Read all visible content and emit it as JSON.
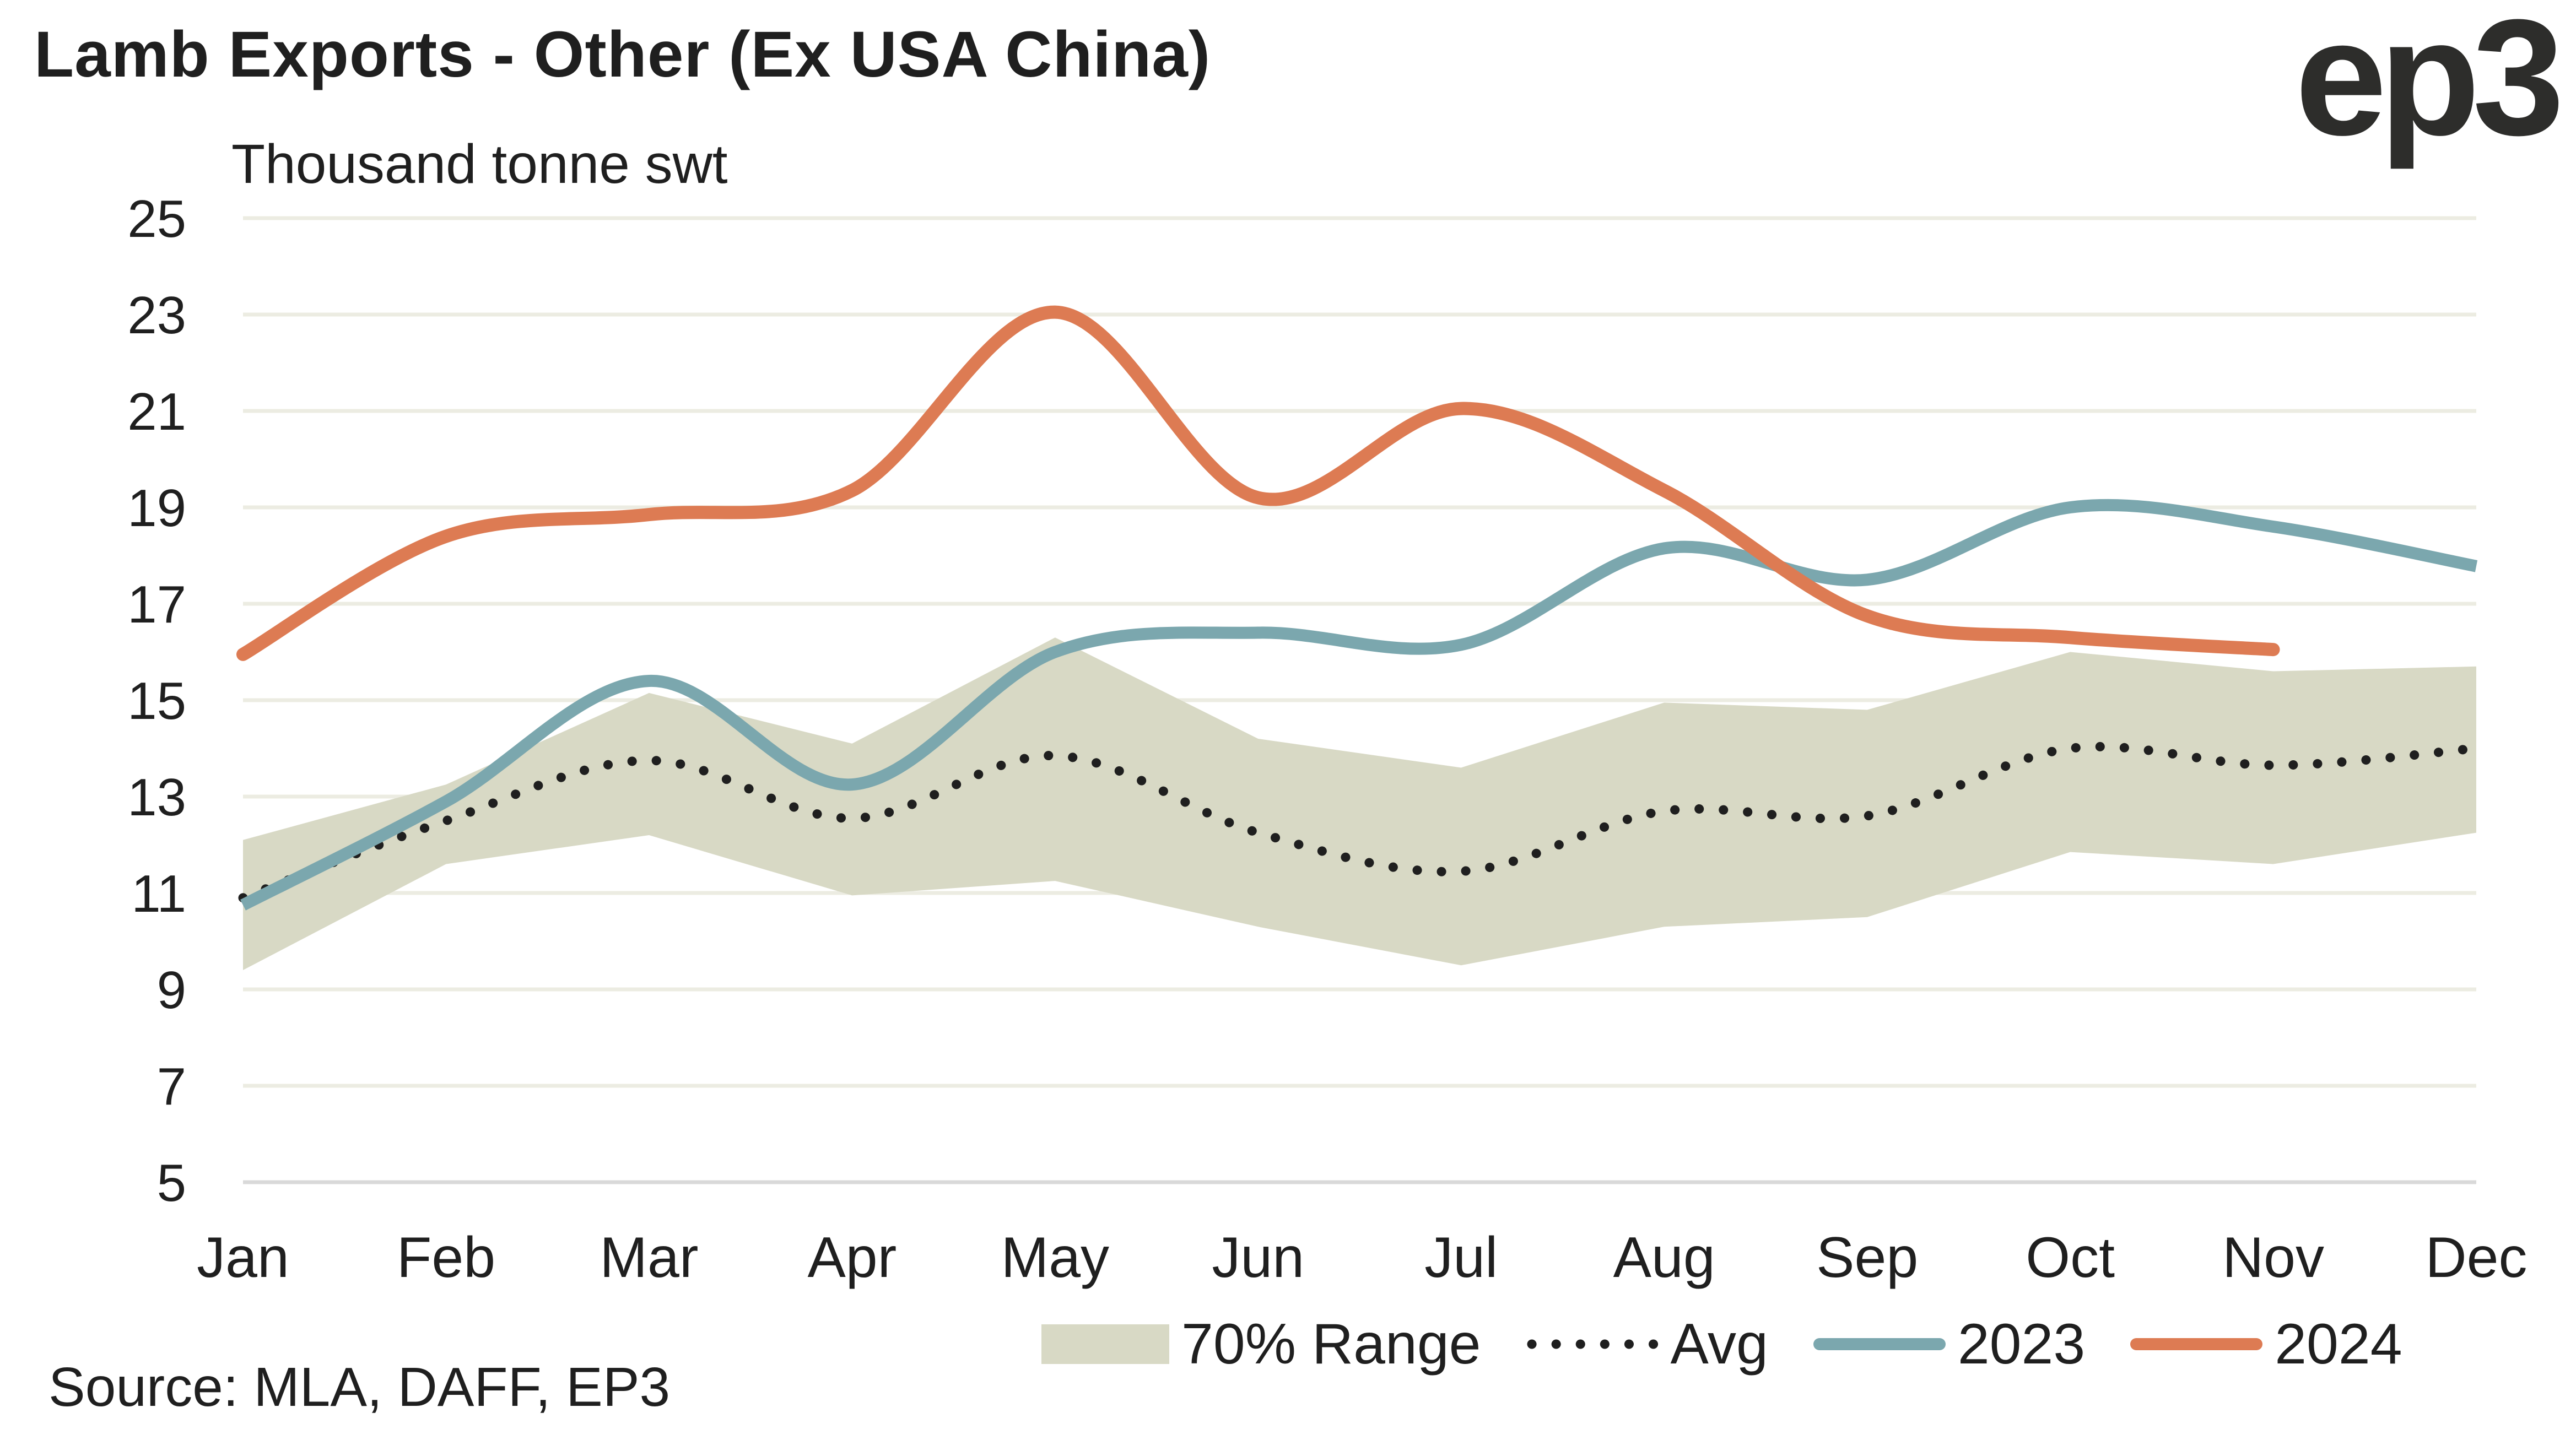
{
  "header": {
    "title": "Lamb Exports - Other (Ex USA China)",
    "logo_text": "ep3",
    "y_unit_label": "Thousand tonne swt"
  },
  "footer": {
    "source": "Source: MLA, DAFF, EP3"
  },
  "colors": {
    "range": "#d8d9c5",
    "avg": "#1f1f1f",
    "s2023": "#7ba7ae",
    "s2024": "#dd7b53",
    "grid": "#ecece2",
    "text": "#1f1f1f"
  },
  "legend": [
    {
      "key": "range",
      "label": "70% Range"
    },
    {
      "key": "avg",
      "label": "Avg"
    },
    {
      "key": "s2023",
      "label": "2023"
    },
    {
      "key": "s2024",
      "label": "2024"
    }
  ],
  "chart_data": {
    "type": "line",
    "title": "Lamb Exports - Other (Ex USA China)",
    "xlabel": "",
    "ylabel": "Thousand tonne swt",
    "categories": [
      "Jan",
      "Feb",
      "Mar",
      "Apr",
      "May",
      "Jun",
      "Jul",
      "Aug",
      "Sep",
      "Oct",
      "Nov",
      "Dec"
    ],
    "ylim": [
      5,
      25
    ],
    "yticks": [
      5,
      7,
      9,
      11,
      13,
      15,
      17,
      19,
      21,
      23,
      25
    ],
    "grid": true,
    "legend_position": "bottom-right",
    "band": {
      "name": "70% Range",
      "upper": [
        12.1,
        13.25,
        15.15,
        14.1,
        16.3,
        14.2,
        13.6,
        14.95,
        14.8,
        16.0,
        15.6,
        15.7
      ],
      "lower": [
        9.4,
        11.6,
        12.2,
        10.95,
        11.25,
        10.3,
        9.5,
        10.3,
        10.5,
        11.85,
        11.6,
        12.25
      ]
    },
    "series": [
      {
        "name": "Avg",
        "style": "dotted",
        "values": [
          10.9,
          12.5,
          13.75,
          12.55,
          13.85,
          12.25,
          11.45,
          12.7,
          12.6,
          14.0,
          13.65,
          14.0
        ]
      },
      {
        "name": "2023",
        "style": "solid",
        "values": [
          10.75,
          12.9,
          15.4,
          13.25,
          16.0,
          16.4,
          16.15,
          18.15,
          17.5,
          19.0,
          18.6,
          17.78
        ]
      },
      {
        "name": "2024",
        "style": "solid",
        "values": [
          15.95,
          18.4,
          18.85,
          19.35,
          23.05,
          19.2,
          21.05,
          19.35,
          16.75,
          16.3,
          16.05,
          null
        ]
      }
    ]
  }
}
